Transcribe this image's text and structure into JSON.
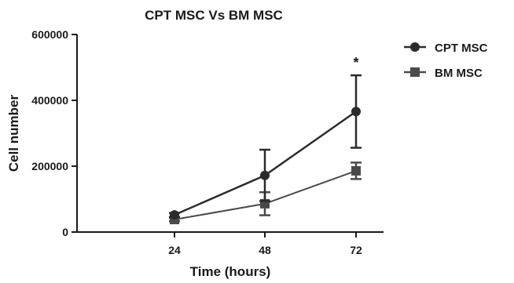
{
  "chart_data": {
    "type": "line",
    "title": "CPT  MSC Vs BM MSC",
    "xlabel": "Time (hours)",
    "ylabel": "Cell number",
    "x": [
      24,
      48,
      72
    ],
    "x_tick_labels": [
      "24",
      "48",
      "72"
    ],
    "ylim": [
      0,
      600000
    ],
    "y_ticks": [
      0,
      200000,
      400000,
      600000
    ],
    "y_tick_labels": [
      "0",
      "200000",
      "400000",
      "600000"
    ],
    "legend_position": "top-right",
    "series": [
      {
        "name": "CPT MSC",
        "marker": "circle",
        "color": "#2b2b2b",
        "values": [
          52000,
          172000,
          366000
        ],
        "error": [
          6000,
          78000,
          110000
        ]
      },
      {
        "name": "BM MSC",
        "marker": "square",
        "color": "#4a4a4a",
        "values": [
          38000,
          86000,
          186000
        ],
        "error": [
          5000,
          35000,
          25000
        ]
      }
    ],
    "annotations": [
      {
        "text": "*",
        "x": 72
      }
    ]
  }
}
